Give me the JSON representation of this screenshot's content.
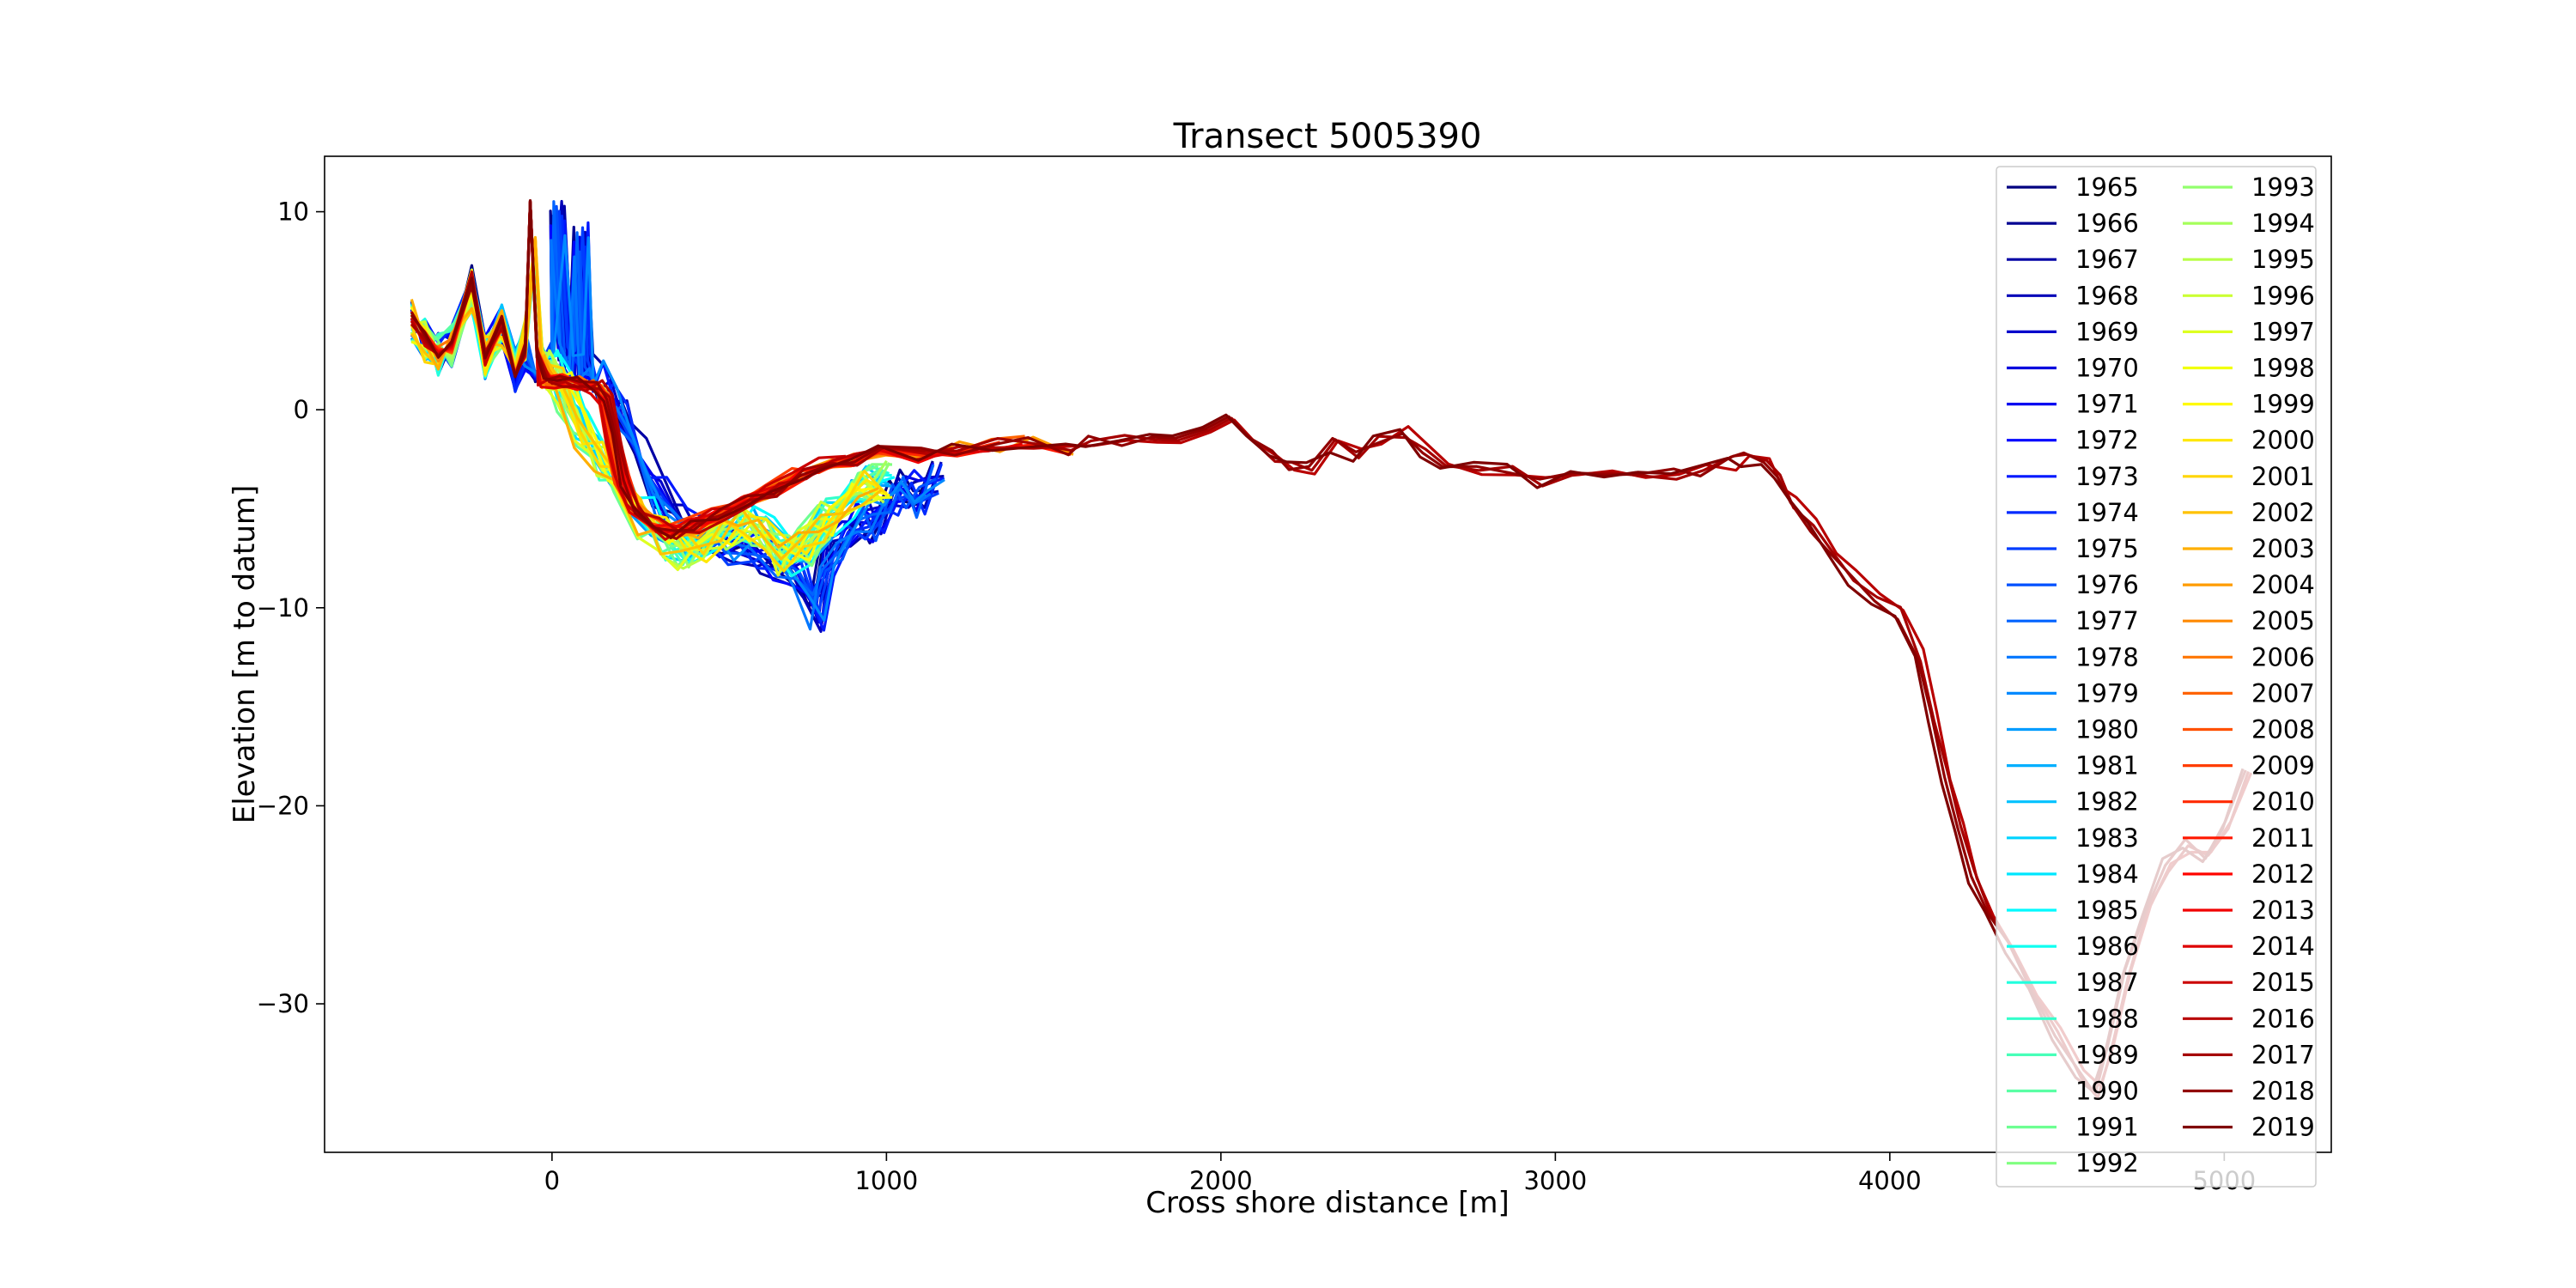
{
  "chart_data": {
    "type": "line",
    "title": "Transect 5005390",
    "xlabel": "Cross shore distance [m]",
    "ylabel": "Elevation [m to datum]",
    "xlim": [
      -680,
      5320
    ],
    "ylim": [
      -37.5,
      12.8
    ],
    "xticks": [
      0,
      1000,
      2000,
      3000,
      4000,
      5000
    ],
    "xtick_labels": [
      "0",
      "1000",
      "2000",
      "3000",
      "4000",
      "5000"
    ],
    "yticks": [
      10,
      0,
      -10,
      -20,
      -30
    ],
    "ytick_labels": [
      "10",
      "0",
      "−10",
      "−20",
      "−30"
    ],
    "grid": false,
    "legend": {
      "placement": "top-right",
      "columns": 2
    },
    "colormap": "jet",
    "series_names": [
      "1965",
      "1966",
      "1967",
      "1968",
      "1969",
      "1970",
      "1971",
      "1972",
      "1973",
      "1974",
      "1975",
      "1976",
      "1977",
      "1978",
      "1979",
      "1980",
      "1981",
      "1982",
      "1983",
      "1984",
      "1985",
      "1986",
      "1987",
      "1988",
      "1989",
      "1990",
      "1991",
      "1992",
      "1993",
      "1994",
      "1995",
      "1996",
      "1997",
      "1998",
      "1999",
      "2000",
      "2001",
      "2002",
      "2003",
      "2004",
      "2005",
      "2006",
      "2007",
      "2008",
      "2009",
      "2010",
      "2011",
      "2012",
      "2013",
      "2014",
      "2015",
      "2016",
      "2017",
      "2018",
      "2019"
    ],
    "profiles": {
      "early": [
        [
          -420,
          4.5
        ],
        [
          -380,
          3.5
        ],
        [
          -340,
          2.8
        ],
        [
          -300,
          3.2
        ],
        [
          -240,
          6.2
        ],
        [
          -200,
          2.6
        ],
        [
          -150,
          4.2
        ],
        [
          -110,
          2.0
        ],
        [
          -80,
          3.0
        ],
        [
          -50,
          2.5
        ],
        [
          0,
          2.5
        ],
        [
          15,
          9.5
        ],
        [
          40,
          2.5
        ],
        [
          70,
          2.2
        ],
        [
          85,
          8.5
        ],
        [
          100,
          2.0
        ],
        [
          130,
          1.5
        ],
        [
          170,
          0.5
        ],
        [
          210,
          -0.5
        ],
        [
          260,
          -2.5
        ],
        [
          320,
          -4.5
        ],
        [
          380,
          -5.8
        ],
        [
          450,
          -6.5
        ],
        [
          520,
          -6.8
        ],
        [
          600,
          -7.2
        ],
        [
          680,
          -7.8
        ],
        [
          740,
          -8.5
        ],
        [
          790,
          -10.2
        ],
        [
          820,
          -7.5
        ],
        [
          870,
          -6.5
        ],
        [
          930,
          -5.5
        ],
        [
          970,
          -5.8
        ],
        [
          1020,
          -4.5
        ],
        [
          1060,
          -4.0
        ],
        [
          1100,
          -4.5
        ],
        [
          1150,
          -3.5
        ]
      ],
      "mid": [
        [
          -420,
          4.5
        ],
        [
          -380,
          3.5
        ],
        [
          -340,
          2.8
        ],
        [
          -300,
          3.2
        ],
        [
          -240,
          6.0
        ],
        [
          -200,
          2.6
        ],
        [
          -150,
          4.2
        ],
        [
          -110,
          2.0
        ],
        [
          -80,
          3.5
        ],
        [
          -50,
          8.5
        ],
        [
          -30,
          2.2
        ],
        [
          0,
          2.0
        ],
        [
          40,
          1.0
        ],
        [
          90,
          -1.0
        ],
        [
          150,
          -2.5
        ],
        [
          210,
          -4.0
        ],
        [
          280,
          -5.5
        ],
        [
          340,
          -6.5
        ],
        [
          400,
          -7.0
        ],
        [
          460,
          -6.6
        ],
        [
          520,
          -6.0
        ],
        [
          580,
          -5.8
        ],
        [
          640,
          -6.2
        ],
        [
          700,
          -7.4
        ],
        [
          760,
          -6.8
        ],
        [
          820,
          -5.6
        ],
        [
          880,
          -4.6
        ],
        [
          940,
          -3.8
        ],
        [
          1000,
          -3.6
        ]
      ],
      "late": [
        [
          -420,
          4.6
        ],
        [
          -380,
          3.6
        ],
        [
          -340,
          2.8
        ],
        [
          -300,
          3.2
        ],
        [
          -240,
          6.6
        ],
        [
          -200,
          2.6
        ],
        [
          -150,
          4.4
        ],
        [
          -110,
          1.9
        ],
        [
          -80,
          3.0
        ],
        [
          -65,
          10.3
        ],
        [
          -45,
          3.0
        ],
        [
          -20,
          1.5
        ],
        [
          20,
          1.4
        ],
        [
          80,
          1.3
        ],
        [
          130,
          1.1
        ],
        [
          160,
          0.5
        ],
        [
          185,
          -1.5
        ],
        [
          210,
          -3.5
        ],
        [
          245,
          -5.0
        ],
        [
          300,
          -5.8
        ],
        [
          360,
          -6.2
        ],
        [
          420,
          -5.9
        ],
        [
          500,
          -5.2
        ],
        [
          580,
          -4.6
        ],
        [
          660,
          -4.0
        ],
        [
          740,
          -3.3
        ],
        [
          820,
          -2.8
        ],
        [
          900,
          -2.5
        ],
        [
          980,
          -2.2
        ],
        [
          1100,
          -2.3
        ],
        [
          1200,
          -2.0
        ],
        [
          1320,
          -1.8
        ],
        [
          1420,
          -1.6
        ],
        [
          1540,
          -1.9
        ],
        [
          1600,
          -1.5
        ],
        [
          1700,
          -1.6
        ],
        [
          1790,
          -1.3
        ],
        [
          1860,
          -1.7
        ],
        [
          1950,
          -1.2
        ],
        [
          2020,
          -0.5
        ],
        [
          2080,
          -1.3
        ],
        [
          2150,
          -2.4
        ],
        [
          2200,
          -2.9
        ],
        [
          2260,
          -3.0
        ],
        [
          2330,
          -1.8
        ],
        [
          2400,
          -2.3
        ],
        [
          2460,
          -1.5
        ],
        [
          2540,
          -1.1
        ],
        [
          2600,
          -2.0
        ],
        [
          2660,
          -2.8
        ],
        [
          2760,
          -2.9
        ],
        [
          2860,
          -3.1
        ],
        [
          2950,
          -3.6
        ],
        [
          3050,
          -3.5
        ],
        [
          3150,
          -3.3
        ],
        [
          3250,
          -3.1
        ],
        [
          3350,
          -3.3
        ],
        [
          3430,
          -3.0
        ],
        [
          3520,
          -2.7
        ],
        [
          3560,
          -2.5
        ],
        [
          3620,
          -2.6
        ],
        [
          3660,
          -3.6
        ],
        [
          3700,
          -4.6
        ],
        [
          3760,
          -5.8
        ],
        [
          3820,
          -7.2
        ],
        [
          3880,
          -8.5
        ],
        [
          3950,
          -9.5
        ],
        [
          4020,
          -10.3
        ],
        [
          4080,
          -12.4
        ],
        [
          4120,
          -15.5
        ],
        [
          4160,
          -18.5
        ],
        [
          4200,
          -21.2
        ],
        [
          4240,
          -23.6
        ],
        [
          4290,
          -25.6
        ],
        [
          4350,
          -27.2
        ],
        [
          4420,
          -29.2
        ],
        [
          4490,
          -31.5
        ],
        [
          4560,
          -33.6
        ],
        [
          4610,
          -34.5
        ],
        [
          4650,
          -32.2
        ],
        [
          4700,
          -28.4
        ],
        [
          4760,
          -25.2
        ],
        [
          4820,
          -23.0
        ],
        [
          4880,
          -22.0
        ],
        [
          4940,
          -22.5
        ],
        [
          5000,
          -21.0
        ],
        [
          5060,
          -18.5
        ]
      ]
    }
  }
}
